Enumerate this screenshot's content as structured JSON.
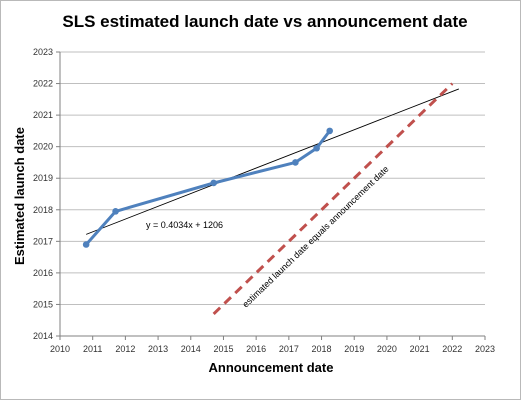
{
  "chart_data": {
    "type": "line",
    "title": "SLS estimated launch date vs announcement date",
    "xlabel": "Announcement date",
    "ylabel": "Estimated launch date",
    "xlim": [
      2010,
      2023
    ],
    "ylim": [
      2014,
      2023
    ],
    "x_ticks": [
      "2010",
      "2011",
      "2012",
      "2013",
      "2014",
      "2015",
      "2016",
      "2017",
      "2018",
      "2019",
      "2020",
      "2021",
      "2022",
      "2023"
    ],
    "y_ticks": [
      "2014",
      "2015",
      "2016",
      "2017",
      "2018",
      "2019",
      "2020",
      "2021",
      "2022",
      "2023"
    ],
    "grid": "horizontal",
    "colors": {
      "series": "#4f81bd",
      "trendline": "#000000",
      "equality": "#c0504d",
      "grid": "#bfbfbf"
    },
    "series": [
      {
        "x": [
          2010.8,
          2011.7,
          2014.7,
          2017.2,
          2017.85,
          2018.25
        ],
        "y": [
          2016.9,
          2017.95,
          2018.85,
          2019.5,
          2019.95,
          2020.5
        ]
      }
    ],
    "trendline": {
      "label": "y = 0.4034x + 1206",
      "slope": 0.4034,
      "x_range": [
        2010.8,
        2022.2
      ],
      "y_range": [
        2017.22,
        2021.83
      ]
    },
    "equality_line": {
      "label": "estimated launch date equals announcement date",
      "x": [
        2014.7,
        2022.0
      ],
      "y": [
        2014.7,
        2022.0
      ]
    }
  }
}
